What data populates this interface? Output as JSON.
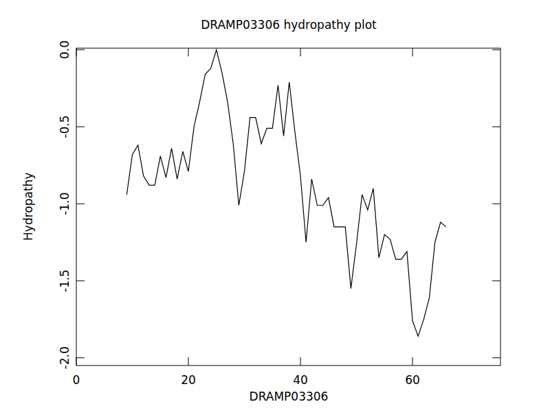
{
  "chart_data": {
    "type": "line",
    "title": "DRAMP03306 hydropathy plot",
    "x_label": "DRAMP03306",
    "y_label": "Hydropathy",
    "x": [
      9,
      10,
      11,
      12,
      13,
      14,
      15,
      16,
      17,
      18,
      19,
      20,
      21,
      22,
      23,
      24,
      25,
      26,
      27,
      28,
      29,
      30,
      31,
      32,
      33,
      34,
      35,
      36,
      37,
      38,
      39,
      40,
      41,
      42,
      43,
      44,
      45,
      46,
      47,
      48,
      49,
      50,
      51,
      52,
      53,
      54,
      55,
      56,
      57,
      58,
      59,
      60,
      61,
      62,
      63,
      64,
      65,
      66
    ],
    "series": [
      {
        "name": "Hydropathy",
        "color": "#000000",
        "values": [
          -0.94,
          -0.68,
          -0.62,
          -0.82,
          -0.88,
          -0.88,
          -0.69,
          -0.83,
          -0.64,
          -0.84,
          -0.66,
          -0.79,
          -0.5,
          -0.34,
          -0.16,
          -0.12,
          0.0,
          -0.15,
          -0.34,
          -0.61,
          -1.01,
          -0.79,
          -0.44,
          -0.44,
          -0.61,
          -0.51,
          -0.51,
          -0.23,
          -0.56,
          -0.21,
          -0.53,
          -0.82,
          -1.25,
          -0.84,
          -1.01,
          -1.01,
          -0.96,
          -1.15,
          -1.15,
          -1.15,
          -1.55,
          -1.26,
          -0.94,
          -1.04,
          -0.9,
          -1.35,
          -1.2,
          -1.23,
          -1.36,
          -1.36,
          -1.31,
          -1.76,
          -1.86,
          -1.75,
          -1.61,
          -1.25,
          -1.12,
          -1.15
        ]
      }
    ],
    "xlim": [
      0,
      75.7
    ],
    "xticks": [
      0,
      20,
      40,
      60
    ],
    "ylim": [
      -2.05,
      0.01
    ],
    "yticks": [
      {
        "value": -2.0,
        "label": "-2.0"
      },
      {
        "value": -1.5,
        "label": "-1.5"
      },
      {
        "value": -1.0,
        "label": "-1.0"
      },
      {
        "value": -0.5,
        "label": "-0.5"
      },
      {
        "value": 0.0,
        "label": "0.0"
      }
    ],
    "grid": false
  }
}
